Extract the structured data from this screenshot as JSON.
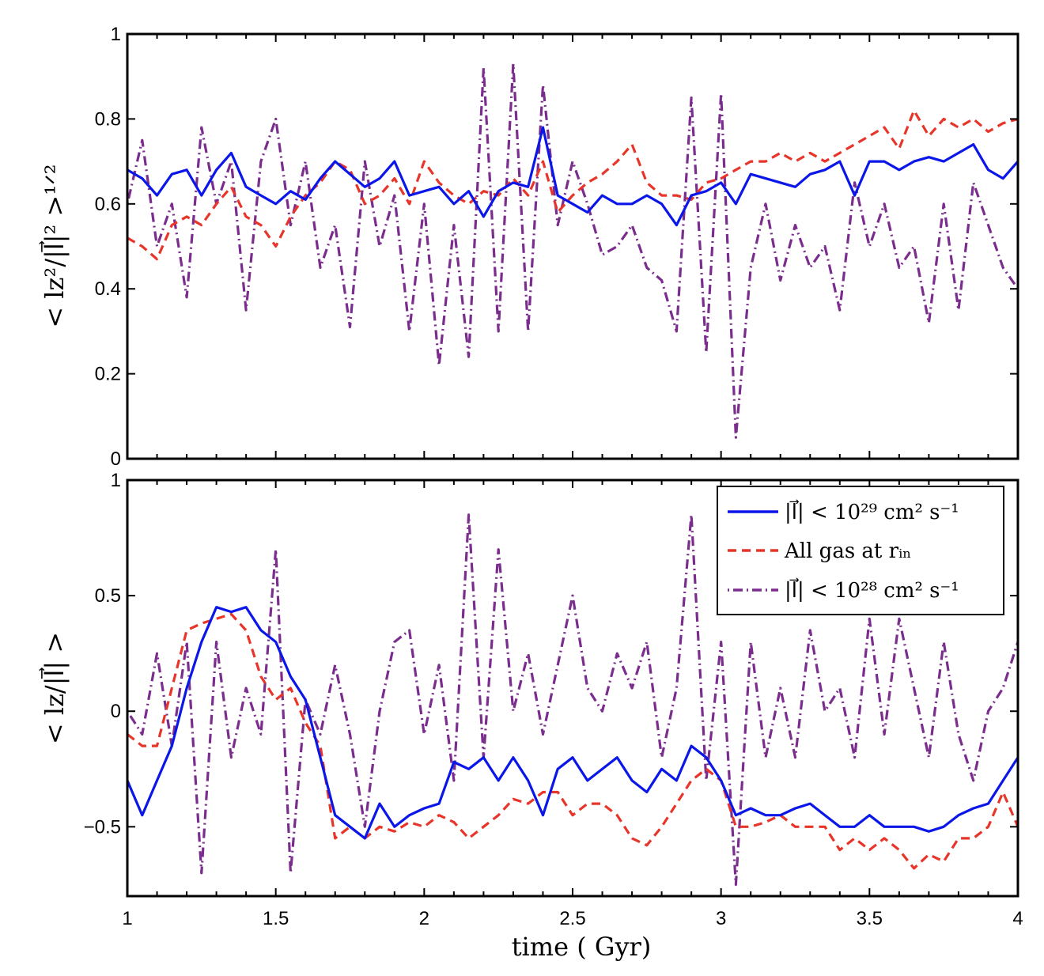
{
  "chart_data": [
    {
      "type": "line",
      "panel": "top",
      "ylabel": "< lz²/|l⃗|² >¹ᐟ²",
      "xlabel": "",
      "xlim": [
        1,
        4
      ],
      "ylim": [
        0,
        1
      ],
      "xticks": [
        "1",
        "1.5",
        "2",
        "2.5",
        "3",
        "3.5",
        "4"
      ],
      "yticks": [
        "0",
        "0.2",
        "0.4",
        "0.6",
        "0.8",
        "1"
      ],
      "x": [
        1.0,
        1.05,
        1.1,
        1.15,
        1.2,
        1.25,
        1.3,
        1.35,
        1.4,
        1.45,
        1.5,
        1.55,
        1.6,
        1.65,
        1.7,
        1.75,
        1.8,
        1.85,
        1.9,
        1.95,
        2.0,
        2.05,
        2.1,
        2.15,
        2.2,
        2.25,
        2.3,
        2.35,
        2.4,
        2.45,
        2.5,
        2.55,
        2.6,
        2.65,
        2.7,
        2.75,
        2.8,
        2.85,
        2.9,
        2.95,
        3.0,
        3.05,
        3.1,
        3.15,
        3.2,
        3.25,
        3.3,
        3.35,
        3.4,
        3.45,
        3.5,
        3.55,
        3.6,
        3.65,
        3.7,
        3.75,
        3.8,
        3.85,
        3.9,
        3.95,
        4.0
      ],
      "series": [
        {
          "key": "blue",
          "color": "#0a17e8",
          "style": "solid",
          "values": [
            0.68,
            0.66,
            0.62,
            0.67,
            0.68,
            0.62,
            0.68,
            0.72,
            0.64,
            0.62,
            0.6,
            0.63,
            0.61,
            0.66,
            0.7,
            0.67,
            0.64,
            0.66,
            0.7,
            0.62,
            0.63,
            0.64,
            0.6,
            0.63,
            0.57,
            0.63,
            0.65,
            0.64,
            0.78,
            0.62,
            0.6,
            0.58,
            0.62,
            0.6,
            0.6,
            0.62,
            0.6,
            0.55,
            0.62,
            0.63,
            0.65,
            0.6,
            0.67,
            0.66,
            0.65,
            0.64,
            0.67,
            0.68,
            0.7,
            0.62,
            0.7,
            0.7,
            0.68,
            0.7,
            0.71,
            0.7,
            0.72,
            0.74,
            0.68,
            0.66,
            0.7
          ]
        },
        {
          "key": "red",
          "color": "#e8352a",
          "style": "dashed",
          "values": [
            0.52,
            0.5,
            0.47,
            0.55,
            0.57,
            0.55,
            0.6,
            0.64,
            0.57,
            0.55,
            0.5,
            0.57,
            0.62,
            0.65,
            0.7,
            0.68,
            0.6,
            0.62,
            0.66,
            0.6,
            0.7,
            0.65,
            0.62,
            0.6,
            0.63,
            0.62,
            0.66,
            0.62,
            0.7,
            0.58,
            0.62,
            0.65,
            0.67,
            0.7,
            0.74,
            0.65,
            0.62,
            0.62,
            0.61,
            0.65,
            0.66,
            0.68,
            0.7,
            0.7,
            0.72,
            0.7,
            0.72,
            0.7,
            0.72,
            0.74,
            0.76,
            0.78,
            0.73,
            0.82,
            0.76,
            0.8,
            0.78,
            0.8,
            0.77,
            0.79,
            0.8
          ]
        },
        {
          "key": "purple",
          "color": "#7b2d8e",
          "style": "dashdot",
          "values": [
            0.6,
            0.75,
            0.5,
            0.6,
            0.38,
            0.78,
            0.6,
            0.7,
            0.35,
            0.7,
            0.8,
            0.55,
            0.7,
            0.45,
            0.55,
            0.31,
            0.7,
            0.5,
            0.62,
            0.3,
            0.6,
            0.22,
            0.55,
            0.24,
            0.92,
            0.3,
            0.93,
            0.3,
            0.88,
            0.55,
            0.7,
            0.6,
            0.48,
            0.5,
            0.55,
            0.45,
            0.42,
            0.3,
            0.85,
            0.25,
            0.86,
            0.05,
            0.45,
            0.6,
            0.42,
            0.55,
            0.45,
            0.5,
            0.35,
            0.65,
            0.5,
            0.6,
            0.45,
            0.5,
            0.32,
            0.6,
            0.35,
            0.65,
            0.55,
            0.45,
            0.4
          ]
        }
      ]
    },
    {
      "type": "line",
      "panel": "bottom",
      "ylabel": "< lz/|l⃗| >",
      "xlabel": "time ( Gyr)",
      "xlim": [
        1,
        4
      ],
      "ylim": [
        -0.8,
        1
      ],
      "xticks": [
        "1",
        "1.5",
        "2",
        "2.5",
        "3",
        "3.5",
        "4"
      ],
      "yticks": [
        "−0.5",
        "0",
        "0.5",
        "1"
      ],
      "x": [
        1.0,
        1.05,
        1.1,
        1.15,
        1.2,
        1.25,
        1.3,
        1.35,
        1.4,
        1.45,
        1.5,
        1.55,
        1.6,
        1.65,
        1.7,
        1.75,
        1.8,
        1.85,
        1.9,
        1.95,
        2.0,
        2.05,
        2.1,
        2.15,
        2.2,
        2.25,
        2.3,
        2.35,
        2.4,
        2.45,
        2.5,
        2.55,
        2.6,
        2.65,
        2.7,
        2.75,
        2.8,
        2.85,
        2.9,
        2.95,
        3.0,
        3.05,
        3.1,
        3.15,
        3.2,
        3.25,
        3.3,
        3.35,
        3.4,
        3.45,
        3.5,
        3.55,
        3.6,
        3.65,
        3.7,
        3.75,
        3.8,
        3.85,
        3.9,
        3.95,
        4.0
      ],
      "legend": {
        "placement": "top-right",
        "entries": [
          "|l⃗| < 10²⁹ cm² s⁻¹",
          "All gas at rᵢₙ",
          "|l⃗| < 10²⁸ cm² s⁻¹"
        ]
      },
      "series": [
        {
          "key": "blue",
          "name": "|l⃗| < 10²⁹ cm² s⁻¹",
          "color": "#0a17e8",
          "style": "solid",
          "values": [
            -0.3,
            -0.45,
            -0.3,
            -0.15,
            0.1,
            0.3,
            0.45,
            0.43,
            0.45,
            0.35,
            0.3,
            0.15,
            0.05,
            -0.2,
            -0.45,
            -0.5,
            -0.55,
            -0.4,
            -0.5,
            -0.45,
            -0.42,
            -0.4,
            -0.22,
            -0.25,
            -0.2,
            -0.3,
            -0.2,
            -0.3,
            -0.45,
            -0.25,
            -0.2,
            -0.3,
            -0.25,
            -0.2,
            -0.3,
            -0.35,
            -0.25,
            -0.3,
            -0.15,
            -0.2,
            -0.3,
            -0.45,
            -0.42,
            -0.45,
            -0.45,
            -0.42,
            -0.4,
            -0.45,
            -0.5,
            -0.5,
            -0.45,
            -0.5,
            -0.5,
            -0.5,
            -0.52,
            -0.5,
            -0.45,
            -0.42,
            -0.4,
            -0.3,
            -0.2
          ]
        },
        {
          "key": "red",
          "name": "All gas at rᵢₙ",
          "color": "#e8352a",
          "style": "dashed",
          "values": [
            -0.1,
            -0.15,
            -0.15,
            0.1,
            0.35,
            0.38,
            0.4,
            0.42,
            0.35,
            0.15,
            0.05,
            0.1,
            -0.05,
            -0.15,
            -0.55,
            -0.5,
            -0.55,
            -0.5,
            -0.52,
            -0.48,
            -0.5,
            -0.45,
            -0.48,
            -0.55,
            -0.5,
            -0.45,
            -0.38,
            -0.4,
            -0.35,
            -0.35,
            -0.45,
            -0.4,
            -0.4,
            -0.45,
            -0.55,
            -0.58,
            -0.5,
            -0.4,
            -0.3,
            -0.25,
            -0.3,
            -0.5,
            -0.5,
            -0.48,
            -0.45,
            -0.5,
            -0.5,
            -0.5,
            -0.6,
            -0.55,
            -0.6,
            -0.55,
            -0.6,
            -0.68,
            -0.62,
            -0.65,
            -0.55,
            -0.55,
            -0.5,
            -0.35,
            -0.5
          ]
        },
        {
          "key": "purple",
          "name": "|l⃗| < 10²⁸ cm² s⁻¹",
          "color": "#7b2d8e",
          "style": "dashdot",
          "values": [
            0.0,
            -0.1,
            0.25,
            -0.15,
            0.3,
            -0.7,
            0.3,
            -0.2,
            0.1,
            -0.1,
            0.7,
            -0.7,
            0.05,
            -0.1,
            0.2,
            -0.1,
            -0.5,
            0.0,
            0.3,
            0.35,
            -0.1,
            0.2,
            -0.3,
            0.85,
            -0.2,
            0.7,
            0.0,
            0.25,
            -0.1,
            0.2,
            0.5,
            0.1,
            0.0,
            0.25,
            0.1,
            0.3,
            -0.2,
            0.1,
            0.85,
            -0.3,
            0.3,
            -0.75,
            0.3,
            -0.2,
            0.1,
            -0.2,
            0.35,
            0.0,
            0.1,
            -0.2,
            0.4,
            -0.1,
            0.4,
            0.1,
            -0.2,
            0.3,
            -0.1,
            -0.3,
            0.0,
            0.1,
            0.3
          ]
        }
      ]
    }
  ]
}
